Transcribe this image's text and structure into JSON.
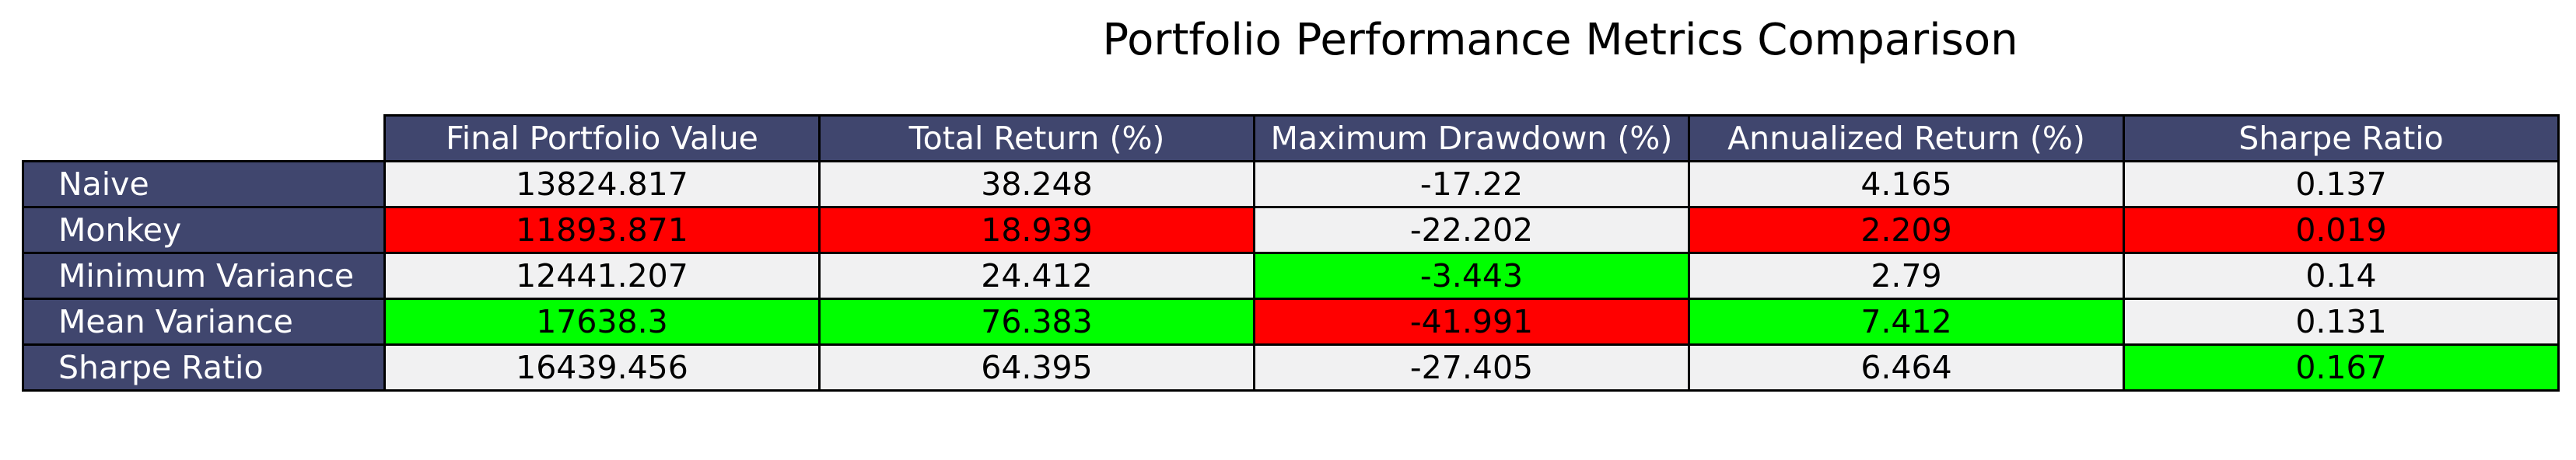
{
  "chart_data": {
    "type": "table",
    "title": "Portfolio Performance Metrics Comparison",
    "columns": [
      "Final Portfolio Value",
      "Total Return (%)",
      "Maximum Drawdown (%)",
      "Annualized Return (%)",
      "Sharpe Ratio"
    ],
    "rows": [
      {
        "label": "Naive",
        "values": [
          "13824.817",
          "38.248",
          "-17.22",
          "4.165",
          "0.137"
        ],
        "highlight": [
          "none",
          "none",
          "none",
          "none",
          "none"
        ]
      },
      {
        "label": "Monkey",
        "values": [
          "11893.871",
          "18.939",
          "-22.202",
          "2.209",
          "0.019"
        ],
        "highlight": [
          "worst",
          "worst",
          "none",
          "worst",
          "worst"
        ]
      },
      {
        "label": "Minimum Variance",
        "values": [
          "12441.207",
          "24.412",
          "-3.443",
          "2.79",
          "0.14"
        ],
        "highlight": [
          "none",
          "none",
          "best",
          "none",
          "none"
        ]
      },
      {
        "label": "Mean Variance",
        "values": [
          "17638.3",
          "76.383",
          "-41.991",
          "7.412",
          "0.131"
        ],
        "highlight": [
          "best",
          "best",
          "worst",
          "best",
          "none"
        ]
      },
      {
        "label": "Sharpe Ratio",
        "values": [
          "16439.456",
          "64.395",
          "-27.405",
          "6.464",
          "0.167"
        ],
        "highlight": [
          "none",
          "none",
          "none",
          "none",
          "best"
        ]
      }
    ],
    "colors": {
      "header_bg": "#40466e",
      "header_text": "#ffffff",
      "cell_bg": "#f1f1f2",
      "best": "#00ff00",
      "worst": "#ff0000"
    }
  }
}
